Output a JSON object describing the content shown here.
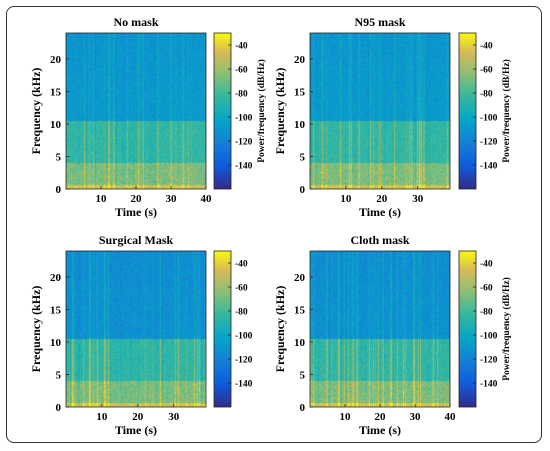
{
  "chart_data": [
    {
      "type": "heatmap",
      "title": "No mask",
      "xlabel": "Time (s)",
      "ylabel": "Frequency (kHz)",
      "colorbar_label": "Power/frequency (dB/Hz)",
      "xlim": [
        0,
        40
      ],
      "ylim": [
        0,
        24
      ],
      "xticks": [
        10,
        20,
        30,
        40
      ],
      "yticks": [
        0,
        5,
        10,
        15,
        20
      ],
      "clim": [
        -160,
        -30
      ],
      "cticks": [
        -40,
        -60,
        -80,
        -100,
        -120,
        -140
      ],
      "bands": [
        {
          "from_khz": 0,
          "to_khz": 4,
          "level_db": -70
        },
        {
          "from_khz": 4,
          "to_khz": 10.5,
          "level_db": -85
        },
        {
          "from_khz": 10.5,
          "to_khz": 24,
          "level_db": -108
        }
      ]
    },
    {
      "type": "heatmap",
      "title": "N95 mask",
      "xlabel": "Time (s)",
      "ylabel": "Frequency (kHz)",
      "colorbar_label": "Power/frequency (dB/Hz)",
      "xlim": [
        0,
        39
      ],
      "ylim": [
        0,
        24
      ],
      "xticks": [
        10,
        20,
        30
      ],
      "yticks": [
        0,
        5,
        10,
        15,
        20
      ],
      "clim": [
        -160,
        -30
      ],
      "cticks": [
        -40,
        -60,
        -80,
        -100,
        -120,
        -140
      ],
      "bands": [
        {
          "from_khz": 0,
          "to_khz": 4,
          "level_db": -70
        },
        {
          "from_khz": 4,
          "to_khz": 10.5,
          "level_db": -85
        },
        {
          "from_khz": 10.5,
          "to_khz": 24,
          "level_db": -108
        }
      ]
    },
    {
      "type": "heatmap",
      "title": "Surgical Mask",
      "xlabel": "Time (s)",
      "ylabel": "Frequency (kHz)",
      "colorbar_label": "",
      "xlim": [
        0,
        39
      ],
      "ylim": [
        0,
        24
      ],
      "xticks": [
        10,
        20,
        30
      ],
      "yticks": [
        0,
        5,
        10,
        15,
        20
      ],
      "clim": [
        -160,
        -30
      ],
      "cticks": [
        -40,
        -60,
        -80,
        -100,
        -120,
        -140
      ],
      "bands": [
        {
          "from_khz": 0,
          "to_khz": 4,
          "level_db": -70
        },
        {
          "from_khz": 4,
          "to_khz": 10.5,
          "level_db": -85
        },
        {
          "from_khz": 10.5,
          "to_khz": 24,
          "level_db": -112
        }
      ]
    },
    {
      "type": "heatmap",
      "title": "Cloth mask",
      "xlabel": "Time (s)",
      "ylabel": "Frequency (kHz)",
      "colorbar_label": "Power/frequency (dB/Hz)",
      "xlim": [
        0,
        40
      ],
      "ylim": [
        0,
        24
      ],
      "xticks": [
        10,
        20,
        30,
        40
      ],
      "yticks": [
        0,
        5,
        10,
        15,
        20
      ],
      "clim": [
        -160,
        -30
      ],
      "cticks": [
        -40,
        -60,
        -80,
        -100,
        -120,
        -140
      ],
      "bands": [
        {
          "from_khz": 0,
          "to_khz": 4,
          "level_db": -70
        },
        {
          "from_khz": 4,
          "to_khz": 10.5,
          "level_db": -85
        },
        {
          "from_khz": 10.5,
          "to_khz": 24,
          "level_db": -112
        }
      ]
    }
  ]
}
